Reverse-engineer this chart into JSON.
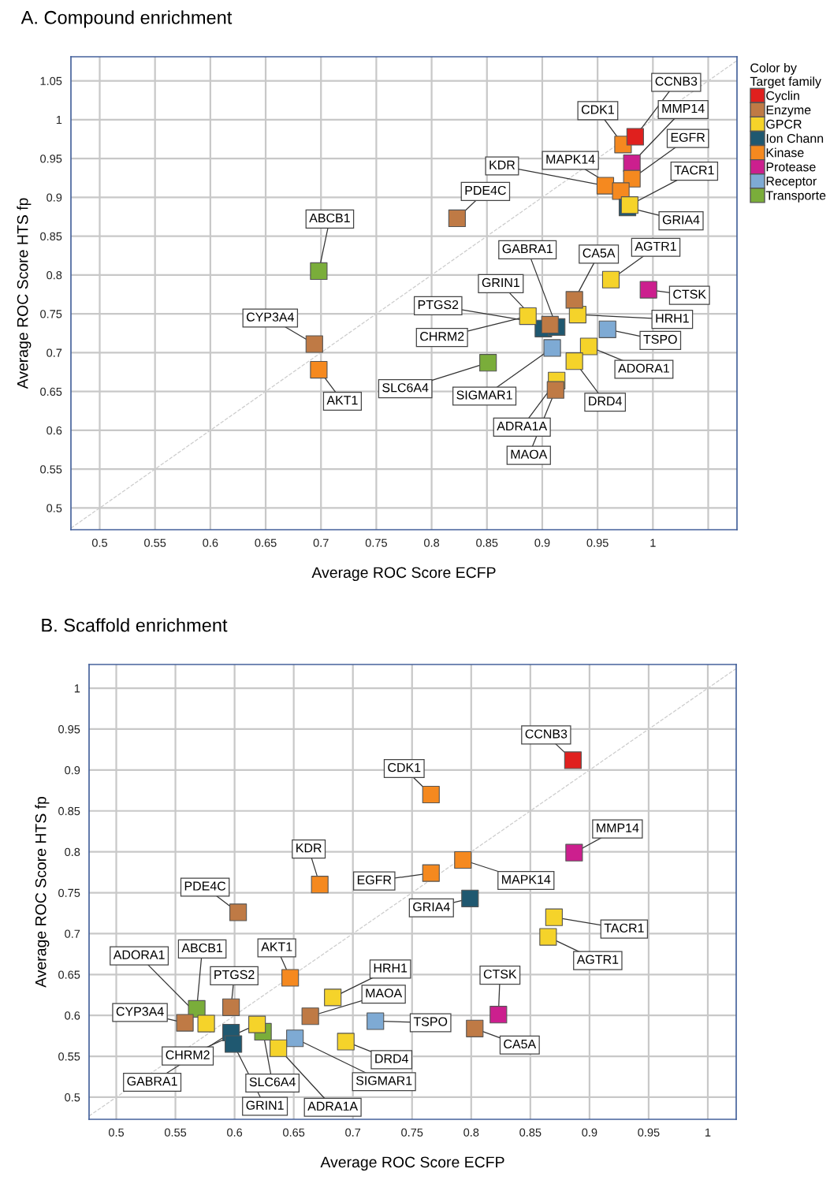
{
  "chart_data": [
    {
      "type": "scatter",
      "title": "A. Compound enrichment",
      "xlabel": "Average ROC Score ECFP",
      "ylabel": "Average ROC Score HTS fp",
      "legend_title": "Color by\nTarget family",
      "legend": "right",
      "grid": true,
      "marker": "square",
      "xlim": [
        0.474,
        1.076
      ],
      "ylim": [
        0.472,
        1.081
      ],
      "xticks": [
        0.5,
        0.55,
        0.6,
        0.65,
        0.7,
        0.75,
        0.8,
        0.85,
        0.9,
        0.95,
        1,
        {
          "value": 1.05,
          "label": null
        }
      ],
      "yticks": [
        0.5,
        0.55,
        0.6,
        0.65,
        0.7,
        0.75,
        0.8,
        0.85,
        0.9,
        0.95,
        1,
        1.05
      ],
      "series": [
        {
          "name": "Cyclin",
          "color": "#e0201e",
          "x": [
            0.984
          ],
          "values": [
            0.978
          ]
        },
        {
          "name": "Enzyme",
          "color": "#bf7a45",
          "x": [
            0.823,
            0.929,
            0.907,
            0.694,
            0.912
          ],
          "values": [
            0.873,
            0.768,
            0.736,
            0.711,
            0.652
          ]
        },
        {
          "name": "GPCR",
          "color": "#f5d32a",
          "x": [
            0.979,
            0.962,
            0.932,
            0.887,
            0.942,
            0.929,
            0.913
          ],
          "values": [
            0.89,
            0.794,
            0.749,
            0.747,
            0.708,
            0.689,
            0.664
          ]
        },
        {
          "name": "Ion Chann",
          "color": "#1f5870",
          "x": [
            0.977,
            0.901,
            0.913
          ],
          "values": [
            0.887,
            0.731,
            0.733
          ]
        },
        {
          "name": "Kinase",
          "color": "#f5891f",
          "x": [
            0.973,
            0.981,
            0.957,
            0.971,
            0.698
          ],
          "values": [
            0.968,
            0.924,
            0.915,
            0.908,
            0.678
          ]
        },
        {
          "name": "Protease",
          "color": "#cc1f8e",
          "x": [
            0.981,
            0.996
          ],
          "values": [
            0.944,
            0.781
          ]
        },
        {
          "name": "Receptor",
          "color": "#7eaad4",
          "x": [
            0.959,
            0.909
          ],
          "values": [
            0.73,
            0.706
          ]
        },
        {
          "name": "Transporte",
          "color": "#7aad3a",
          "x": [
            0.698,
            0.851
          ],
          "values": [
            0.805,
            0.687
          ]
        },
        {
          "type": "line",
          "color": "#cccccc",
          "line_style": "dashed",
          "marker": "none",
          "x": [
            0.474,
            1.076
          ],
          "values": [
            0.474,
            1.076
          ]
        }
      ],
      "annotations": [
        {
          "text": "CCNB3",
          "x": 0.984,
          "y": 0.978
        },
        {
          "text": "PDE4C",
          "x": 0.823,
          "y": 0.873
        },
        {
          "text": "CA5A",
          "x": 0.929,
          "y": 0.768
        },
        {
          "text": "PTGS2",
          "x": 0.907,
          "y": 0.736
        },
        {
          "text": "CYP3A4",
          "x": 0.694,
          "y": 0.711
        },
        {
          "text": "MAOA",
          "x": 0.912,
          "y": 0.652
        },
        {
          "text": "TACR1",
          "x": 0.979,
          "y": 0.89
        },
        {
          "text": "AGTR1",
          "x": 0.962,
          "y": 0.794
        },
        {
          "text": "HRH1",
          "x": 0.932,
          "y": 0.749
        },
        {
          "text": "CHRM2",
          "x": 0.887,
          "y": 0.747
        },
        {
          "text": "ADORA1",
          "x": 0.942,
          "y": 0.708
        },
        {
          "text": "DRD4",
          "x": 0.929,
          "y": 0.689
        },
        {
          "text": "ADRA1A",
          "x": 0.913,
          "y": 0.664
        },
        {
          "text": "GRIA4",
          "x": 0.977,
          "y": 0.887
        },
        {
          "text": "GRIN1",
          "x": 0.901,
          "y": 0.731
        },
        {
          "text": "GABRA1",
          "x": 0.913,
          "y": 0.733
        },
        {
          "text": "CDK1",
          "x": 0.973,
          "y": 0.968
        },
        {
          "text": "EGFR",
          "x": 0.981,
          "y": 0.924
        },
        {
          "text": "KDR",
          "x": 0.957,
          "y": 0.915
        },
        {
          "text": "MAPK14",
          "x": 0.971,
          "y": 0.908
        },
        {
          "text": "AKT1",
          "x": 0.698,
          "y": 0.678
        },
        {
          "text": "MMP14",
          "x": 0.981,
          "y": 0.944
        },
        {
          "text": "CTSK",
          "x": 0.996,
          "y": 0.781
        },
        {
          "text": "TSPO",
          "x": 0.959,
          "y": 0.73
        },
        {
          "text": "SIGMAR1",
          "x": 0.909,
          "y": 0.706
        },
        {
          "text": "ABCB1",
          "x": 0.698,
          "y": 0.805
        },
        {
          "text": "SLC6A4",
          "x": 0.851,
          "y": 0.687
        }
      ]
    },
    {
      "type": "scatter",
      "title": "B. Scaffold enrichment",
      "xlabel": "Average ROC Score ECFP",
      "ylabel": "Average ROC Score HTS fp",
      "grid": true,
      "marker": "square",
      "xlim": [
        0.477,
        1.024
      ],
      "ylim": [
        0.473,
        1.029
      ],
      "xticks": [
        0.5,
        0.55,
        0.6,
        0.65,
        0.7,
        0.75,
        0.8,
        0.85,
        0.9,
        0.95,
        1
      ],
      "yticks": [
        0.5,
        0.55,
        0.6,
        0.65,
        0.7,
        0.75,
        0.8,
        0.85,
        0.9,
        0.95,
        1
      ],
      "series": [
        {
          "color": "#e0201e",
          "x": [
            0.886
          ],
          "values": [
            0.912
          ]
        },
        {
          "color": "#bf7a45",
          "x": [
            0.603,
            0.597,
            0.664,
            0.558,
            0.803
          ],
          "values": [
            0.726,
            0.61,
            0.599,
            0.591,
            0.584
          ]
        },
        {
          "color": "#f5d32a",
          "x": [
            0.87,
            0.865,
            0.683,
            0.576,
            0.619,
            0.637,
            0.694
          ],
          "values": [
            0.72,
            0.696,
            0.622,
            0.59,
            0.589,
            0.56,
            0.568
          ]
        },
        {
          "color": "#1f5870",
          "x": [
            0.799,
            0.597,
            0.599
          ],
          "values": [
            0.743,
            0.579,
            0.565
          ]
        },
        {
          "color": "#f5891f",
          "x": [
            0.766,
            0.793,
            0.766,
            0.672,
            0.647
          ],
          "values": [
            0.87,
            0.79,
            0.774,
            0.76,
            0.646
          ]
        },
        {
          "color": "#cc1f8e",
          "x": [
            0.887,
            0.823
          ],
          "values": [
            0.799,
            0.601
          ]
        },
        {
          "color": "#7eaad4",
          "x": [
            0.719,
            0.651
          ],
          "values": [
            0.593,
            0.572
          ]
        },
        {
          "color": "#7aad3a",
          "x": [
            0.568,
            0.624
          ],
          "values": [
            0.608,
            0.58
          ]
        },
        {
          "type": "line",
          "color": "#cccccc",
          "line_style": "dashed",
          "marker": "none",
          "x": [
            0.477,
            1.024
          ],
          "values": [
            0.477,
            1.024
          ]
        }
      ],
      "annotations": [
        {
          "text": "CCNB3",
          "x": 0.886,
          "y": 0.912
        },
        {
          "text": "PDE4C",
          "x": 0.603,
          "y": 0.726
        },
        {
          "text": "PTGS2",
          "x": 0.597,
          "y": 0.61
        },
        {
          "text": "MAOA",
          "x": 0.664,
          "y": 0.599
        },
        {
          "text": "CYP3A4",
          "x": 0.558,
          "y": 0.591
        },
        {
          "text": "CA5A",
          "x": 0.803,
          "y": 0.584
        },
        {
          "text": "TACR1",
          "x": 0.87,
          "y": 0.72
        },
        {
          "text": "AGTR1",
          "x": 0.865,
          "y": 0.696
        },
        {
          "text": "HRH1",
          "x": 0.683,
          "y": 0.622
        },
        {
          "text": "ADORA1",
          "x": 0.576,
          "y": 0.59
        },
        {
          "text": "CHRM2",
          "x": 0.619,
          "y": 0.589
        },
        {
          "text": "ADRA1A",
          "x": 0.637,
          "y": 0.56
        },
        {
          "text": "DRD4",
          "x": 0.694,
          "y": 0.568
        },
        {
          "text": "GRIA4",
          "x": 0.799,
          "y": 0.743
        },
        {
          "text": "GABRA1",
          "x": 0.597,
          "y": 0.579
        },
        {
          "text": "GRIN1",
          "x": 0.599,
          "y": 0.565
        },
        {
          "text": "CDK1",
          "x": 0.766,
          "y": 0.87
        },
        {
          "text": "MAPK14",
          "x": 0.793,
          "y": 0.79
        },
        {
          "text": "EGFR",
          "x": 0.766,
          "y": 0.774
        },
        {
          "text": "KDR",
          "x": 0.672,
          "y": 0.76
        },
        {
          "text": "AKT1",
          "x": 0.647,
          "y": 0.646
        },
        {
          "text": "MMP14",
          "x": 0.887,
          "y": 0.799
        },
        {
          "text": "CTSK",
          "x": 0.823,
          "y": 0.601
        },
        {
          "text": "TSPO",
          "x": 0.719,
          "y": 0.593
        },
        {
          "text": "SIGMAR1",
          "x": 0.651,
          "y": 0.572
        },
        {
          "text": "ABCB1",
          "x": 0.568,
          "y": 0.608
        },
        {
          "text": "SLC6A4",
          "x": 0.624,
          "y": 0.58
        }
      ]
    }
  ]
}
